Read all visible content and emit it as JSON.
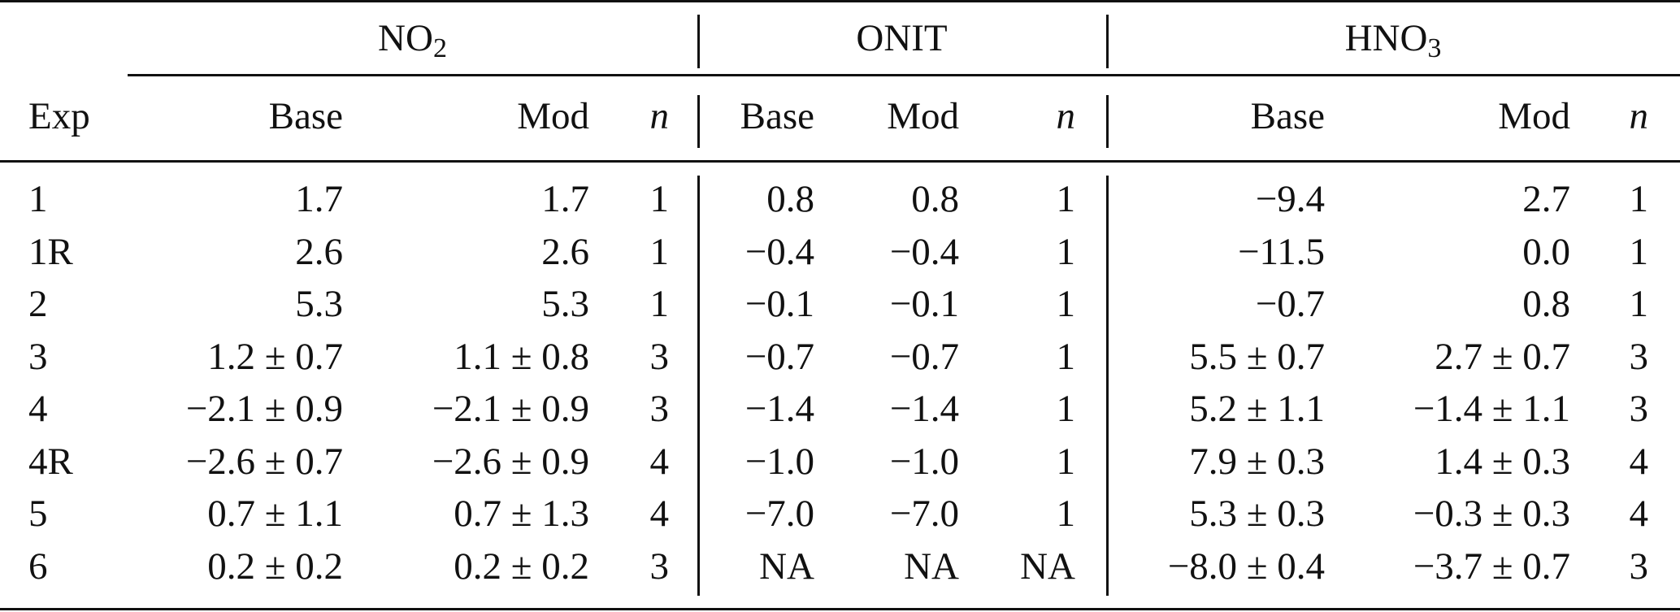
{
  "table": {
    "groups": [
      {
        "id": "no2",
        "label_main": "NO",
        "label_sub": "2"
      },
      {
        "id": "onit",
        "label_main": "ONIT",
        "label_sub": ""
      },
      {
        "id": "hno3",
        "label_main": "HNO",
        "label_sub": "3"
      }
    ],
    "columns": {
      "exp": "Exp",
      "no2_base": "Base",
      "no2_mod": "Mod",
      "no2_n": "n",
      "onit_base": "Base",
      "onit_mod": "Mod",
      "onit_n": "n",
      "hno3_base": "Base",
      "hno3_mod": "Mod",
      "hno3_n": "n"
    },
    "rows": [
      {
        "exp": "1",
        "no2_base": "1.7",
        "no2_mod": "1.7",
        "no2_n": "1",
        "onit_base": "0.8",
        "onit_mod": "0.8",
        "onit_n": "1",
        "hno3_base": "−9.4",
        "hno3_mod": "2.7",
        "hno3_n": "1"
      },
      {
        "exp": "1R",
        "no2_base": "2.6",
        "no2_mod": "2.6",
        "no2_n": "1",
        "onit_base": "−0.4",
        "onit_mod": "−0.4",
        "onit_n": "1",
        "hno3_base": "−11.5",
        "hno3_mod": "0.0",
        "hno3_n": "1"
      },
      {
        "exp": "2",
        "no2_base": "5.3",
        "no2_mod": "5.3",
        "no2_n": "1",
        "onit_base": "−0.1",
        "onit_mod": "−0.1",
        "onit_n": "1",
        "hno3_base": "−0.7",
        "hno3_mod": "0.8",
        "hno3_n": "1"
      },
      {
        "exp": "3",
        "no2_base": "1.2 ± 0.7",
        "no2_mod": "1.1 ± 0.8",
        "no2_n": "3",
        "onit_base": "−0.7",
        "onit_mod": "−0.7",
        "onit_n": "1",
        "hno3_base": "5.5 ± 0.7",
        "hno3_mod": "2.7 ± 0.7",
        "hno3_n": "3"
      },
      {
        "exp": "4",
        "no2_base": "−2.1 ± 0.9",
        "no2_mod": "−2.1 ± 0.9",
        "no2_n": "3",
        "onit_base": "−1.4",
        "onit_mod": "−1.4",
        "onit_n": "1",
        "hno3_base": "5.2 ± 1.1",
        "hno3_mod": "−1.4 ± 1.1",
        "hno3_n": "3"
      },
      {
        "exp": "4R",
        "no2_base": "−2.6 ± 0.7",
        "no2_mod": "−2.6 ± 0.9",
        "no2_n": "4",
        "onit_base": "−1.0",
        "onit_mod": "−1.0",
        "onit_n": "1",
        "hno3_base": "7.9 ± 0.3",
        "hno3_mod": "1.4 ± 0.3",
        "hno3_n": "4"
      },
      {
        "exp": "5",
        "no2_base": "0.7 ± 1.1",
        "no2_mod": "0.7 ± 1.3",
        "no2_n": "4",
        "onit_base": "−7.0",
        "onit_mod": "−7.0",
        "onit_n": "1",
        "hno3_base": "5.3 ± 0.3",
        "hno3_mod": "−0.3 ± 0.3",
        "hno3_n": "4"
      },
      {
        "exp": "6",
        "no2_base": "0.2 ± 0.2",
        "no2_mod": "0.2 ± 0.2",
        "no2_n": "3",
        "onit_base": "NA",
        "onit_mod": "NA",
        "onit_n": "NA",
        "hno3_base": "−8.0 ± 0.4",
        "hno3_mod": "−3.7 ± 0.7",
        "hno3_n": "3"
      }
    ]
  }
}
